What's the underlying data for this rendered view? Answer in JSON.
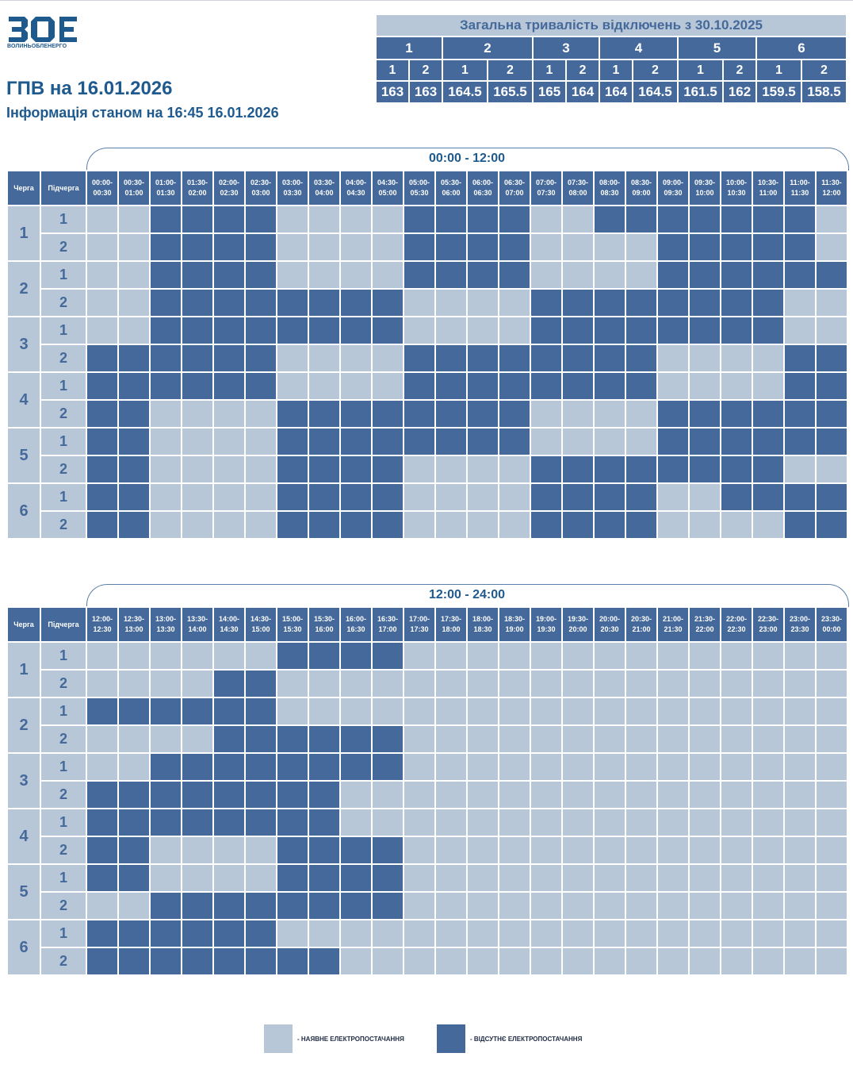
{
  "header": {
    "logo_text": "ВОЛИНЬОБЛЕНЕРГО",
    "logo_letters": "ВОЕ",
    "title": "ГПВ на 16.01.2026",
    "subtitle": "Інформація станом на 16:45 16.01.2026"
  },
  "summary": {
    "title": "Загальна тривалість відключень з 30.10.2025",
    "queues": [
      "1",
      "2",
      "3",
      "4",
      "5",
      "6"
    ],
    "subqueues": [
      "1",
      "2",
      "1",
      "2",
      "1",
      "2",
      "1",
      "2",
      "1",
      "2",
      "1",
      "2"
    ],
    "values": [
      "163",
      "163",
      "164.5",
      "165.5",
      "165",
      "164",
      "164",
      "164.5",
      "161.5",
      "162",
      "159.5",
      "158.5"
    ]
  },
  "colors": {
    "available": "#b8c7d8",
    "outage": "#44699a",
    "text": "#1f5a8e"
  },
  "columns": {
    "queue": "Черга",
    "subqueue": "Підчерга"
  },
  "rows": [
    {
      "queue": "1",
      "sub": "1"
    },
    {
      "queue": "1",
      "sub": "2"
    },
    {
      "queue": "2",
      "sub": "1"
    },
    {
      "queue": "2",
      "sub": "2"
    },
    {
      "queue": "3",
      "sub": "1"
    },
    {
      "queue": "3",
      "sub": "2"
    },
    {
      "queue": "4",
      "sub": "1"
    },
    {
      "queue": "4",
      "sub": "2"
    },
    {
      "queue": "5",
      "sub": "1"
    },
    {
      "queue": "5",
      "sub": "2"
    },
    {
      "queue": "6",
      "sub": "1"
    },
    {
      "queue": "6",
      "sub": "2"
    }
  ],
  "tables": [
    {
      "range": "00:00 - 12:00",
      "slots": [
        "00:00-\n00:30",
        "00:30-\n01:00",
        "01:00-\n01:30",
        "01:30-\n02:00",
        "02:00-\n02:30",
        "02:30-\n03:00",
        "03:00-\n03:30",
        "03:30-\n04:00",
        "04:00-\n04:30",
        "04:30-\n05:00",
        "05:00-\n05:30",
        "05:30-\n06:00",
        "06:00-\n06:30",
        "06:30-\n07:00",
        "07:00-\n07:30",
        "07:30-\n08:00",
        "08:00-\n08:30",
        "08:30-\n09:00",
        "09:00-\n09:30",
        "09:30-\n10:00",
        "10:00-\n10:30",
        "10:30-\n11:00",
        "11:00-\n11:30",
        "11:30-\n12:00"
      ],
      "grid": [
        "001111000011110011111110",
        "001111000011110000111110",
        "001111000011110000111111",
        "001111111100001111111100",
        "001111111100001111111100",
        "111111000011111111000011",
        "111111000011111111000011",
        "110000111111110000111111",
        "110000111111110000111111",
        "110000111100001111111100",
        "110000111100001111001111",
        "110000111100001111000011"
      ]
    },
    {
      "range": "12:00 - 24:00",
      "slots": [
        "12:00-\n12:30",
        "12:30-\n13:00",
        "13:00-\n13:30",
        "13:30-\n14:00",
        "14:00-\n14:30",
        "14:30-\n15:00",
        "15:00-\n15:30",
        "15:30-\n16:00",
        "16:00-\n16:30",
        "16:30-\n17:00",
        "17:00-\n17:30",
        "17:30-\n18:00",
        "18:00-\n18:30",
        "18:30-\n19:00",
        "19:00-\n19:30",
        "19:30-\n20:00",
        "20:00-\n20:30",
        "20:30-\n21:00",
        "21:00-\n21:30",
        "21:30-\n22:00",
        "22:00-\n22:30",
        "22:30-\n23:00",
        "23:00-\n23:30",
        "23:30-\n00:00"
      ],
      "grid": [
        "000000111100000000000000",
        "000011000000000000000000",
        "111111000000000000000000",
        "000011111100000000000000",
        "001111111100000000000000",
        "111111110000000000000000",
        "111111110000000000000000",
        "110000111100000000000000",
        "110000111100000000000000",
        "001111111100000000000000",
        "111111000000000000000000",
        "111111110000000000000000"
      ]
    }
  ],
  "legend": {
    "available": "- НАЯВНЕ ЕЛЕКТРОПОСТАЧАННЯ",
    "outage": "- ВІДСУТНЄ ЕЛЕКТРОПОСТАЧАННЯ"
  }
}
